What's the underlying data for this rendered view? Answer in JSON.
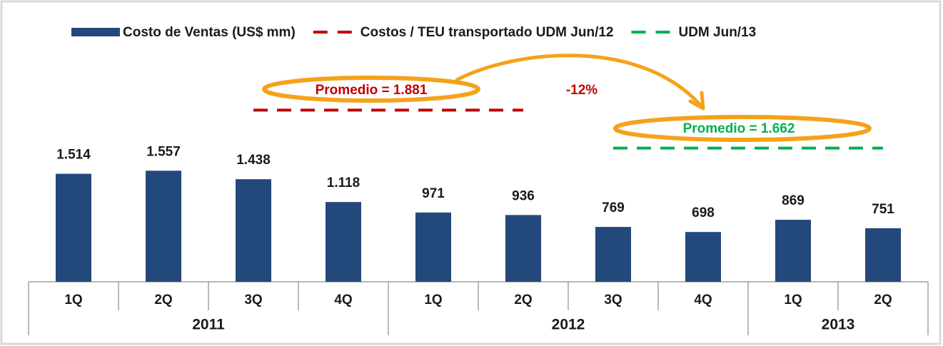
{
  "chart_data": {
    "type": "bar",
    "legend": "top",
    "groups": [
      {
        "label": "2011",
        "categories": [
          "1Q",
          "2Q",
          "3Q",
          "4Q"
        ]
      },
      {
        "label": "2012",
        "categories": [
          "1Q",
          "2Q",
          "3Q",
          "4Q"
        ]
      },
      {
        "label": "2013",
        "categories": [
          "1Q",
          "2Q"
        ]
      }
    ],
    "series": [
      {
        "name": "Costo de Ventas (US$ mm)",
        "color": "#23487b",
        "type": "bar",
        "values": [
          1514,
          1557,
          1438,
          1118,
          971,
          936,
          769,
          698,
          869,
          751
        ],
        "value_labels": [
          "1.514",
          "1.557",
          "1.438",
          "1.118",
          "971",
          "936",
          "769",
          "698",
          "869",
          "751"
        ]
      },
      {
        "name": "Costos / TEU transportado UDM Jun/12",
        "color": "#c00000",
        "type": "line",
        "axis": "y2",
        "values": [
          null,
          null,
          1881,
          1881,
          1881,
          1881,
          null,
          null,
          null,
          null
        ]
      },
      {
        "name": "UDM Jun/13",
        "color": "#00b050",
        "type": "line",
        "axis": "y2",
        "values": [
          null,
          null,
          null,
          null,
          null,
          null,
          1662,
          1662,
          1662,
          1662
        ]
      }
    ],
    "ylim": [
      0,
      3350
    ],
    "y2lim": [
      890,
      2270
    ],
    "annotations": [
      {
        "text": "Promedio = 1.881",
        "color": "#c00000"
      },
      {
        "text": "-12%",
        "color": "#c00000"
      },
      {
        "text": "Promedio = 1.662",
        "color": "#00b050"
      }
    ]
  }
}
